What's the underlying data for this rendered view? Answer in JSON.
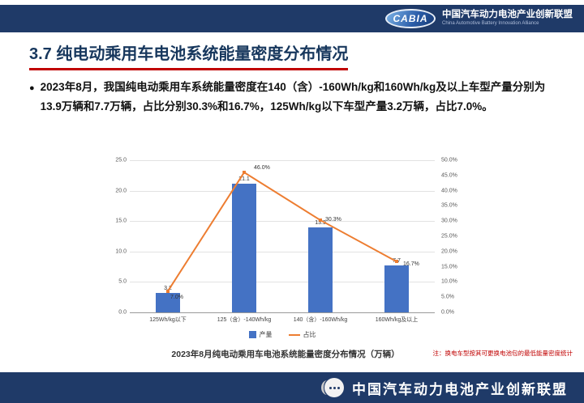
{
  "header": {
    "logo_text": "CABIA",
    "org_cn": "中国汽车动力电池产业创新联盟",
    "org_en": "China Automotive Battery Innovation Alliance"
  },
  "slide": {
    "title": "3.7 纯电动乘用车电池系统能量密度分布情况",
    "bullet": "2023年8月，我国纯电动乘用车系统能量密度在140（含）-160Wh/kg和160Wh/kg及以上车型产量分别为13.9万辆和7.7万辆，占比分别30.3%和16.7%，125Wh/kg以下车型产量3.2万辆，占比7.0%。",
    "caption": "2023年8月纯电动乘用车电池系统能量密度分布情况（万辆）",
    "note": "注：换电车型按其可更换电池包的最低能量密度统计"
  },
  "footer": {
    "org_cn": "中国汽车动力电池产业创新联盟"
  },
  "colors": {
    "navy": "#1f3a68",
    "title_text": "#17375d",
    "title_underline": "#c00000",
    "bar": "#4472c4",
    "line": "#ed7d31",
    "note_text": "#c00000"
  },
  "chart_data": {
    "type": "bar",
    "subtype": "bar+line combo, dual axis",
    "title": "2023年8月纯电动乘用车电池系统能量密度分布情况（万辆）",
    "categories": [
      "125Wh/kg以下",
      "125（含）-140Wh/kg",
      "140（含）-160Wh/kg",
      "160Wh/kg及以上"
    ],
    "series": [
      {
        "name": "产量",
        "type": "bar",
        "axis": "left",
        "color": "#4472c4",
        "values": [
          3.2,
          21.1,
          13.9,
          7.7
        ],
        "labels": [
          "3.2",
          "21.1",
          "13.9",
          "7.7"
        ]
      },
      {
        "name": "占比",
        "type": "line",
        "axis": "right",
        "color": "#ed7d31",
        "values": [
          7.0,
          46.0,
          30.3,
          16.7
        ],
        "labels": [
          "7.0%",
          "46.0%",
          "30.3%",
          "16.7%"
        ]
      }
    ],
    "left_axis": {
      "min": 0,
      "max": 25,
      "ticks": [
        "25.0",
        "20.0",
        "15.0",
        "10.0",
        "5.0",
        "0.0"
      ]
    },
    "right_axis": {
      "min": 0,
      "max": 50,
      "ticks": [
        "50.0%",
        "45.0%",
        "40.0%",
        "35.0%",
        "30.0%",
        "25.0%",
        "20.0%",
        "15.0%",
        "10.0%",
        "5.0%",
        "0.0%"
      ]
    },
    "legend": [
      "产量",
      "占比"
    ],
    "legend_position": "bottom",
    "grid": true
  }
}
